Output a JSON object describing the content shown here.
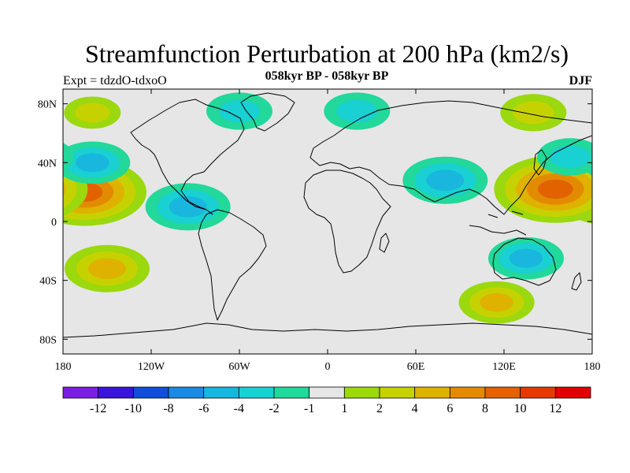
{
  "title": "Streamfunction Perturbation at 200 hPa (km2/s)",
  "subtitle": "058kyr BP - 058kyr BP",
  "left_label": "Expt = tdzdO-tdxoO",
  "right_label": "DJF",
  "chart_data": {
    "type": "heatmap",
    "title": "Streamfunction Perturbation at 200 hPa (km2/s)",
    "subtitle": "058kyr BP - 058kyr BP",
    "experiment": "Expt = tdzdO-tdxoO",
    "season": "DJF",
    "x_ticks": [
      "180",
      "120W",
      "60W",
      "0",
      "60E",
      "120E",
      "180"
    ],
    "x_tick_values": [
      -180,
      -120,
      -60,
      0,
      60,
      120,
      180
    ],
    "y_ticks": [
      "80N",
      "40N",
      "0",
      "40S",
      "80S"
    ],
    "y_tick_values": [
      80,
      40,
      0,
      -40,
      -80
    ],
    "xlim": [
      -180,
      180
    ],
    "ylim": [
      -90,
      90
    ],
    "colorbar_labels": [
      "-12",
      "-10",
      "-8",
      "-6",
      "-4",
      "-2",
      "-1",
      "1",
      "2",
      "4",
      "6",
      "8",
      "10",
      "12"
    ],
    "colorbar_levels": [
      -12,
      -10,
      -8,
      -6,
      -4,
      -2,
      -1,
      1,
      2,
      4,
      6,
      8,
      10,
      12
    ],
    "colorbar_colors": [
      "#7a1fe0",
      "#3a14d8",
      "#0f4fd8",
      "#1c8ae0",
      "#19b6de",
      "#19d0d2",
      "#22d89a",
      "#e6e6e6",
      "#9bd80e",
      "#c6d200",
      "#e0b200",
      "#e38b00",
      "#e26200",
      "#e33a00",
      "#e00000"
    ],
    "regions": [
      {
        "lon": -165,
        "lat": 20,
        "value": 9,
        "sign": "positive"
      },
      {
        "lon": -150,
        "lat": -32,
        "value": 5,
        "sign": "positive"
      },
      {
        "lon": 155,
        "lat": 22,
        "value": 9,
        "sign": "positive"
      },
      {
        "lon": 140,
        "lat": 74,
        "value": 3,
        "sign": "positive"
      },
      {
        "lon": 115,
        "lat": -55,
        "value": 4,
        "sign": "positive"
      },
      {
        "lon": -160,
        "lat": 74,
        "value": 2,
        "sign": "positive"
      },
      {
        "lon": 80,
        "lat": 28,
        "value": -5,
        "sign": "negative"
      },
      {
        "lon": -95,
        "lat": 10,
        "value": -5,
        "sign": "negative"
      },
      {
        "lon": -60,
        "lat": 75,
        "value": -3,
        "sign": "negative"
      },
      {
        "lon": 20,
        "lat": 75,
        "value": -3,
        "sign": "negative"
      },
      {
        "lon": 135,
        "lat": -25,
        "value": -4,
        "sign": "negative"
      },
      {
        "lon": -160,
        "lat": 40,
        "value": -4,
        "sign": "negative"
      },
      {
        "lon": 165,
        "lat": 44,
        "value": -3,
        "sign": "negative"
      }
    ]
  }
}
